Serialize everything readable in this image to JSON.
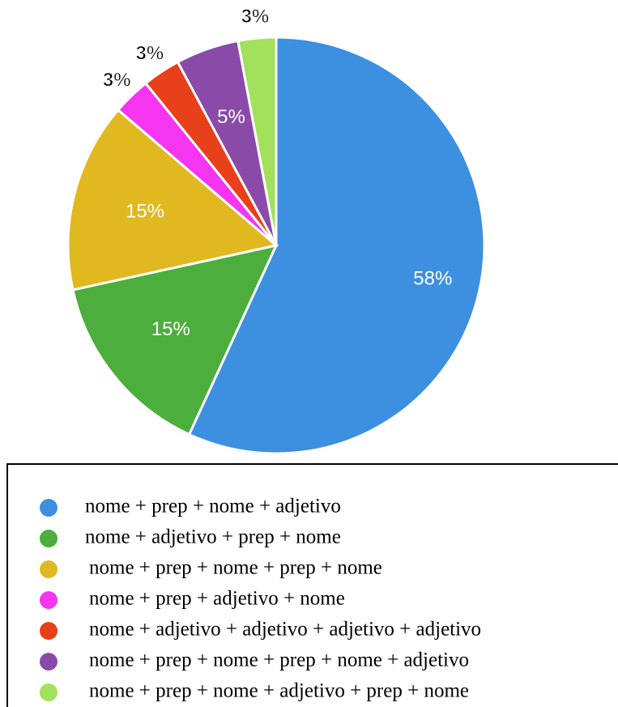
{
  "chart_data": {
    "type": "pie",
    "categories": [
      "nome + prep + nome + adjetivo",
      "nome + adjetivo + prep + nome",
      "nome + prep + nome + prep + nome",
      "nome + prep + adjetivo + nome",
      "nome + adjetivo + adjetivo + adjetivo + adjetivo",
      "nome + prep + nome + prep + nome + adjetivo",
      "nome + prep + nome + adjetivo + prep + nome"
    ],
    "values": [
      58,
      15,
      15,
      3,
      3,
      5,
      3
    ],
    "value_labels": [
      "58%",
      "15%",
      "15%",
      "3%",
      "3%",
      "5%",
      "3%"
    ],
    "colors": [
      "#3d8fe0",
      "#4cae3c",
      "#e0b820",
      "#f535f0",
      "#e8401a",
      "#8a4aa8",
      "#a3e05c"
    ],
    "legend": "bottom"
  }
}
